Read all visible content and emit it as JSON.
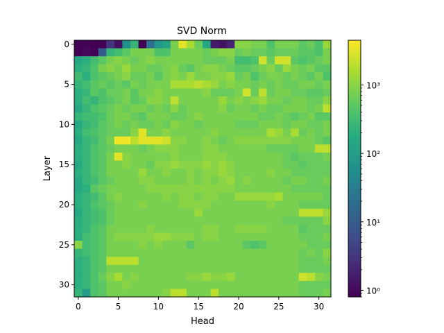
{
  "chart_data": {
    "type": "heatmap",
    "title": "SVD Norm",
    "xlabel": "Head",
    "ylabel": "Layer",
    "x_ticks": [
      0,
      5,
      10,
      15,
      20,
      25,
      30
    ],
    "y_ticks": [
      0,
      5,
      10,
      15,
      20,
      25,
      30
    ],
    "n_heads": 32,
    "n_layers": 32,
    "colorscale": "viridis",
    "color_scale_type": "log",
    "color_range": [
      0.8,
      4500
    ],
    "colorbar_ticks": [
      {
        "value": 1,
        "label": "10⁰"
      },
      {
        "value": 10,
        "label": "10¹"
      },
      {
        "value": 100,
        "label": "10²"
      },
      {
        "value": 1000,
        "label": "10³"
      }
    ],
    "values_note": "log10 values per layer row (32 layers x 32 heads)",
    "log10_values": [
      [
        -0.08,
        -0.05,
        -0.1,
        -0.08,
        0.5,
        0.1,
        1.8,
        2.4,
        -0.1,
        1.3,
        1.9,
        2.1,
        2.9,
        3.5,
        3.2,
        2.8,
        2.2,
        0.2,
        0.1,
        0.3,
        3.0,
        3.0,
        2.9,
        2.9,
        2.6,
        2.9,
        2.9,
        2.9,
        2.7,
        2.8,
        2.6,
        3.1
      ],
      [
        -0.08,
        0.0,
        -0.05,
        1.0,
        2.4,
        2.5,
        2.7,
        2.9,
        2.9,
        2.9,
        2.6,
        2.6,
        2.9,
        2.9,
        2.9,
        2.9,
        2.8,
        2.9,
        3.0,
        3.0,
        2.8,
        2.9,
        2.8,
        2.8,
        2.7,
        2.8,
        2.8,
        2.8,
        2.7,
        2.7,
        2.6,
        2.9
      ],
      [
        2.2,
        2.3,
        2.5,
        2.7,
        2.9,
        3.0,
        2.9,
        2.8,
        2.9,
        3.0,
        2.9,
        2.9,
        2.9,
        2.9,
        2.9,
        2.9,
        2.8,
        2.8,
        2.8,
        2.9,
        2.5,
        2.5,
        2.6,
        3.4,
        2.8,
        3.4,
        3.4,
        2.7,
        2.6,
        2.7,
        2.8,
        2.9
      ],
      [
        2.3,
        2.4,
        2.6,
        2.9,
        3.0,
        2.9,
        3.1,
        2.9,
        2.9,
        2.8,
        2.8,
        2.9,
        3.0,
        2.8,
        2.7,
        2.9,
        3.0,
        3.0,
        2.9,
        2.8,
        2.7,
        2.7,
        2.8,
        2.9,
        3.0,
        2.8,
        3.1,
        2.9,
        2.8,
        2.9,
        2.7,
        2.7
      ],
      [
        2.5,
        2.3,
        2.6,
        2.7,
        2.8,
        2.9,
        3.0,
        2.8,
        2.8,
        2.9,
        2.7,
        2.9,
        3.0,
        2.9,
        3.1,
        2.9,
        2.9,
        3.0,
        3.0,
        3.1,
        2.8,
        2.9,
        2.6,
        2.8,
        2.9,
        2.9,
        2.8,
        2.9,
        2.8,
        2.7,
        2.9,
        2.6
      ],
      [
        2.4,
        2.5,
        2.7,
        2.8,
        2.7,
        2.8,
        2.7,
        2.9,
        2.8,
        2.9,
        2.9,
        2.9,
        3.2,
        3.2,
        3.2,
        3.3,
        3.2,
        3.1,
        2.9,
        3.0,
        2.9,
        2.9,
        2.8,
        2.9,
        2.8,
        2.9,
        2.8,
        2.8,
        2.9,
        2.9,
        2.8,
        2.9
      ],
      [
        2.3,
        2.4,
        2.7,
        2.6,
        2.8,
        2.8,
        2.9,
        2.7,
        2.9,
        2.9,
        3.0,
        2.9,
        2.9,
        2.9,
        2.9,
        2.9,
        3.0,
        2.8,
        2.8,
        2.8,
        2.9,
        3.4,
        2.8,
        3.3,
        2.8,
        2.9,
        2.9,
        2.8,
        2.8,
        2.7,
        2.7,
        2.8
      ],
      [
        2.3,
        2.5,
        2.4,
        2.6,
        2.7,
        2.8,
        2.9,
        2.7,
        2.8,
        3.0,
        3.0,
        2.9,
        3.3,
        2.9,
        2.9,
        2.9,
        2.9,
        2.9,
        3.1,
        2.9,
        3.0,
        2.9,
        3.0,
        3.1,
        2.9,
        2.9,
        2.8,
        2.9,
        2.9,
        2.8,
        2.8,
        3.0
      ],
      [
        2.2,
        2.4,
        2.6,
        2.7,
        2.8,
        2.9,
        2.8,
        2.9,
        2.9,
        2.8,
        2.9,
        2.8,
        3.0,
        2.8,
        2.9,
        2.9,
        2.9,
        2.9,
        3.0,
        2.8,
        2.9,
        2.9,
        2.8,
        2.9,
        2.8,
        2.8,
        2.9,
        2.9,
        2.9,
        2.8,
        2.9,
        3.3
      ],
      [
        2.4,
        2.5,
        2.5,
        2.6,
        2.8,
        2.9,
        2.9,
        2.8,
        2.7,
        2.9,
        2.9,
        2.9,
        2.8,
        2.8,
        2.9,
        3.0,
        2.9,
        2.9,
        2.9,
        2.9,
        2.9,
        2.9,
        2.9,
        2.8,
        2.8,
        2.9,
        2.8,
        2.7,
        2.8,
        2.9,
        2.7,
        2.7
      ],
      [
        2.2,
        2.4,
        2.5,
        2.7,
        2.8,
        2.9,
        2.8,
        2.9,
        2.8,
        2.8,
        2.9,
        2.8,
        3.0,
        2.9,
        2.9,
        2.8,
        2.9,
        2.9,
        2.9,
        2.9,
        2.8,
        2.8,
        2.8,
        2.9,
        2.9,
        2.9,
        2.8,
        2.9,
        2.9,
        2.8,
        2.8,
        2.9
      ],
      [
        2.3,
        2.5,
        2.6,
        2.7,
        2.8,
        2.8,
        2.8,
        3.0,
        3.5,
        2.9,
        2.9,
        3.0,
        2.9,
        2.9,
        2.9,
        2.9,
        2.9,
        3.0,
        2.9,
        2.9,
        2.9,
        2.9,
        2.9,
        2.9,
        3.2,
        3.1,
        2.9,
        3.2,
        2.8,
        2.9,
        2.8,
        2.9
      ],
      [
        2.2,
        2.4,
        2.5,
        2.7,
        2.9,
        3.6,
        3.6,
        3.3,
        3.5,
        3.5,
        3.5,
        3.4,
        3.0,
        3.0,
        2.9,
        2.9,
        3.0,
        2.9,
        2.8,
        2.9,
        3.0,
        3.0,
        3.0,
        3.0,
        3.0,
        3.0,
        3.0,
        2.9,
        2.9,
        2.9,
        2.8,
        2.7
      ],
      [
        2.3,
        2.4,
        2.6,
        2.7,
        2.8,
        2.9,
        2.9,
        2.9,
        2.8,
        2.9,
        3.0,
        3.0,
        3.0,
        2.9,
        2.9,
        2.9,
        3.0,
        3.0,
        2.9,
        2.9,
        2.9,
        2.9,
        2.9,
        2.9,
        2.8,
        2.8,
        2.8,
        2.8,
        2.9,
        2.9,
        3.3,
        3.3
      ],
      [
        2.3,
        2.4,
        2.6,
        2.7,
        2.9,
        3.5,
        3.0,
        2.9,
        2.9,
        2.9,
        2.9,
        2.9,
        3.0,
        2.9,
        2.9,
        2.9,
        3.0,
        3.0,
        3.0,
        2.9,
        2.9,
        2.9,
        2.9,
        2.9,
        2.9,
        2.9,
        2.8,
        2.7,
        2.8,
        2.8,
        2.8,
        2.9
      ],
      [
        2.2,
        2.4,
        2.6,
        2.7,
        2.9,
        2.9,
        3.0,
        2.9,
        2.9,
        2.8,
        3.0,
        3.0,
        3.1,
        3.0,
        3.0,
        3.0,
        3.1,
        3.0,
        3.1,
        3.0,
        2.9,
        2.9,
        2.9,
        2.9,
        2.9,
        2.9,
        2.8,
        2.8,
        2.7,
        2.8,
        2.8,
        2.8
      ],
      [
        2.3,
        2.4,
        2.6,
        2.7,
        2.9,
        2.9,
        2.9,
        2.9,
        3.1,
        2.9,
        2.9,
        3.0,
        2.9,
        2.9,
        3.0,
        2.9,
        3.0,
        3.0,
        3.1,
        3.0,
        2.9,
        2.9,
        2.9,
        2.9,
        3.0,
        2.9,
        2.9,
        2.8,
        2.8,
        2.8,
        2.8,
        2.8
      ],
      [
        2.2,
        2.4,
        2.5,
        2.7,
        2.8,
        2.9,
        2.9,
        2.9,
        3.0,
        3.0,
        2.9,
        2.9,
        2.9,
        2.9,
        3.0,
        2.9,
        3.0,
        2.9,
        3.0,
        3.1,
        2.9,
        3.0,
        2.9,
        2.9,
        2.9,
        2.9,
        2.8,
        2.9,
        2.9,
        2.8,
        2.8,
        2.9
      ],
      [
        2.2,
        2.3,
        2.7,
        2.8,
        2.9,
        2.9,
        2.9,
        2.9,
        2.9,
        3.0,
        3.0,
        3.0,
        3.0,
        3.0,
        3.0,
        3.0,
        3.0,
        3.0,
        3.0,
        3.0,
        2.9,
        2.9,
        2.9,
        2.9,
        2.9,
        2.9,
        2.9,
        2.8,
        2.8,
        2.8,
        2.8,
        2.8
      ],
      [
        2.3,
        2.4,
        2.5,
        2.7,
        2.9,
        3.0,
        2.9,
        2.9,
        2.9,
        2.9,
        2.9,
        3.0,
        2.9,
        3.0,
        3.0,
        2.9,
        3.0,
        3.0,
        2.9,
        2.9,
        3.1,
        3.1,
        3.1,
        3.1,
        3.1,
        3.2,
        2.9,
        2.9,
        2.9,
        2.9,
        2.9,
        2.8
      ],
      [
        2.3,
        2.4,
        2.6,
        2.7,
        2.8,
        2.9,
        2.9,
        2.9,
        3.0,
        2.9,
        2.9,
        2.9,
        2.9,
        3.0,
        3.0,
        3.0,
        3.0,
        2.9,
        2.9,
        2.9,
        2.9,
        2.9,
        2.9,
        2.9,
        3.0,
        2.9,
        2.9,
        2.9,
        2.8,
        2.8,
        2.8,
        2.8
      ],
      [
        2.2,
        2.4,
        2.5,
        2.6,
        2.8,
        2.9,
        2.9,
        2.9,
        2.9,
        2.9,
        2.9,
        2.9,
        2.9,
        2.9,
        2.9,
        3.1,
        2.9,
        2.9,
        2.9,
        2.9,
        2.9,
        2.9,
        2.9,
        2.9,
        2.9,
        2.9,
        2.9,
        2.9,
        3.3,
        3.3,
        3.3,
        3.1
      ],
      [
        2.3,
        2.4,
        2.5,
        2.6,
        2.8,
        2.9,
        2.9,
        2.9,
        2.9,
        2.9,
        2.9,
        2.9,
        2.9,
        2.9,
        2.9,
        2.9,
        2.9,
        2.9,
        2.9,
        2.9,
        2.9,
        2.9,
        2.9,
        2.9,
        2.9,
        2.9,
        2.8,
        2.8,
        2.8,
        2.8,
        2.8,
        3.0
      ],
      [
        2.3,
        2.4,
        2.6,
        2.7,
        2.9,
        2.9,
        2.9,
        2.9,
        2.9,
        3.0,
        2.9,
        2.9,
        2.9,
        2.9,
        2.9,
        2.9,
        3.0,
        3.0,
        2.9,
        2.9,
        3.0,
        3.0,
        3.0,
        3.0,
        2.9,
        2.9,
        2.9,
        2.9,
        2.7,
        2.8,
        2.8,
        2.8
      ],
      [
        2.3,
        2.5,
        2.6,
        2.7,
        2.9,
        3.0,
        3.0,
        3.0,
        3.0,
        3.0,
        3.1,
        3.1,
        3.0,
        3.0,
        3.0,
        2.9,
        3.0,
        3.0,
        2.9,
        2.9,
        2.9,
        2.9,
        2.9,
        2.9,
        2.9,
        2.9,
        2.9,
        2.9,
        2.8,
        2.8,
        2.8,
        2.9
      ],
      [
        3.0,
        2.5,
        2.6,
        2.7,
        2.9,
        2.9,
        2.9,
        2.9,
        3.0,
        2.9,
        3.0,
        2.9,
        2.9,
        2.9,
        2.7,
        2.9,
        2.9,
        2.9,
        2.9,
        2.9,
        2.9,
        2.7,
        2.6,
        2.7,
        2.9,
        2.9,
        2.9,
        2.9,
        2.9,
        2.8,
        2.8,
        2.8
      ],
      [
        2.4,
        2.5,
        2.6,
        2.7,
        2.9,
        2.9,
        2.9,
        2.9,
        2.9,
        2.9,
        2.9,
        2.9,
        2.9,
        2.9,
        2.9,
        2.9,
        2.9,
        2.9,
        2.9,
        2.9,
        2.9,
        2.9,
        2.9,
        2.9,
        2.9,
        2.9,
        2.9,
        2.9,
        2.8,
        2.9,
        2.8,
        3.0
      ],
      [
        2.3,
        2.4,
        2.6,
        2.7,
        3.3,
        3.3,
        3.3,
        3.3,
        2.9,
        2.9,
        2.9,
        2.9,
        2.9,
        2.9,
        2.9,
        2.9,
        2.9,
        2.9,
        2.9,
        2.9,
        2.9,
        2.9,
        2.9,
        2.9,
        2.9,
        2.9,
        2.9,
        2.9,
        2.8,
        2.8,
        2.8,
        2.9
      ],
      [
        2.3,
        2.4,
        2.6,
        2.7,
        2.9,
        2.9,
        2.9,
        2.9,
        2.9,
        2.9,
        2.9,
        2.9,
        2.9,
        2.9,
        2.9,
        2.9,
        2.9,
        2.9,
        2.9,
        2.9,
        2.9,
        2.9,
        2.9,
        2.9,
        2.9,
        2.9,
        2.9,
        2.9,
        2.8,
        2.8,
        2.8,
        2.8
      ],
      [
        2.3,
        2.4,
        2.6,
        2.8,
        3.0,
        3.2,
        2.9,
        3.0,
        2.9,
        2.9,
        2.9,
        2.9,
        2.9,
        2.9,
        3.0,
        3.0,
        3.1,
        3.0,
        3.0,
        3.1,
        2.9,
        2.9,
        2.9,
        2.9,
        2.9,
        2.9,
        2.9,
        2.9,
        3.4,
        3.3,
        3.0,
        2.9
      ],
      [
        2.3,
        2.4,
        2.6,
        2.7,
        2.9,
        2.9,
        3.0,
        2.9,
        2.9,
        2.9,
        2.9,
        2.9,
        2.9,
        2.9,
        2.9,
        2.9,
        2.9,
        2.9,
        2.9,
        2.9,
        2.9,
        2.9,
        2.9,
        2.9,
        2.9,
        2.9,
        2.9,
        2.9,
        2.8,
        2.8,
        2.8,
        2.8
      ],
      [
        2.4,
        2.0,
        2.6,
        2.7,
        2.9,
        2.9,
        2.9,
        2.9,
        2.9,
        2.9,
        2.9,
        3.0,
        3.3,
        3.3,
        2.9,
        2.9,
        2.9,
        3.3,
        2.9,
        2.9,
        2.9,
        2.9,
        2.9,
        2.9,
        2.9,
        2.9,
        2.9,
        2.9,
        2.8,
        2.8,
        2.8,
        2.9
      ]
    ]
  }
}
